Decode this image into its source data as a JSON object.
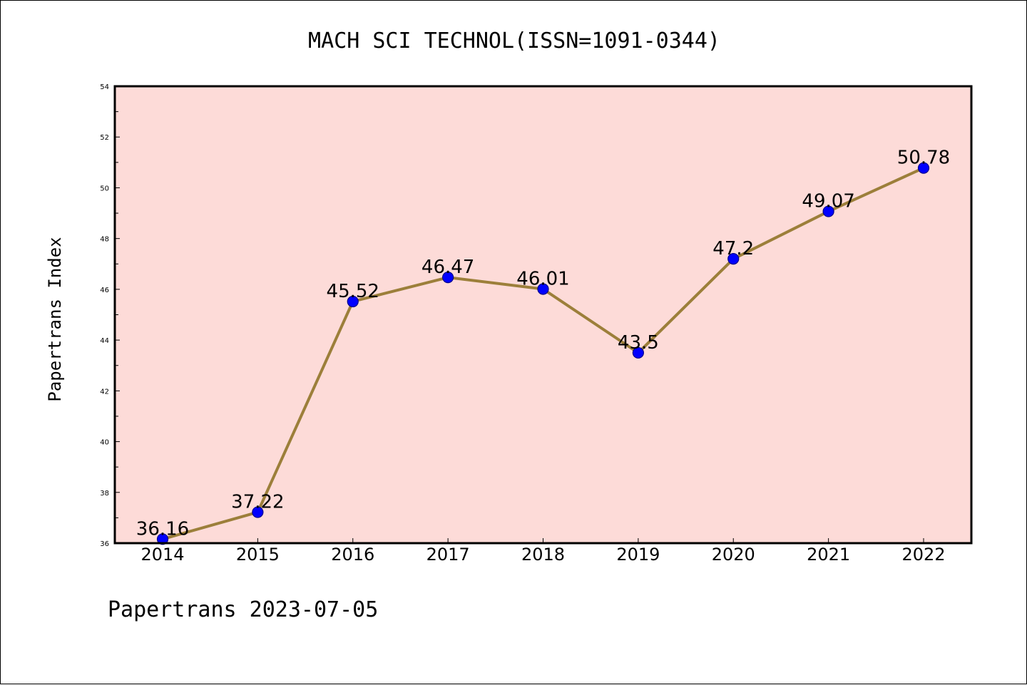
{
  "footer_text": "Papertrans 2023-07-05",
  "colors": {
    "plot_background": "#fddbd8",
    "line": "#9c7f3a",
    "marker_fill": "#0000ff",
    "marker_edge": "#00008b"
  },
  "chart_data": {
    "type": "line",
    "title": "MACH SCI TECHNOL(ISSN=1091-0344)",
    "xlabel": "",
    "ylabel": "Papertrans Index",
    "categories": [
      "2014",
      "2015",
      "2016",
      "2017",
      "2018",
      "2019",
      "2020",
      "2021",
      "2022"
    ],
    "series": [
      {
        "values": [
          36.16,
          37.22,
          45.52,
          46.47,
          46.01,
          43.5,
          47.2,
          49.07,
          50.78
        ],
        "data_labels": [
          "36.16",
          "37.22",
          "45.52",
          "46.47",
          "46.01",
          "43.5",
          "47.2",
          "49.07",
          "50.78"
        ]
      }
    ],
    "ylim": [
      36,
      54
    ],
    "yticks": [
      "36",
      "38",
      "40",
      "42",
      "44",
      "46",
      "48",
      "50",
      "52",
      "54"
    ],
    "grid": false,
    "legend": "none"
  }
}
